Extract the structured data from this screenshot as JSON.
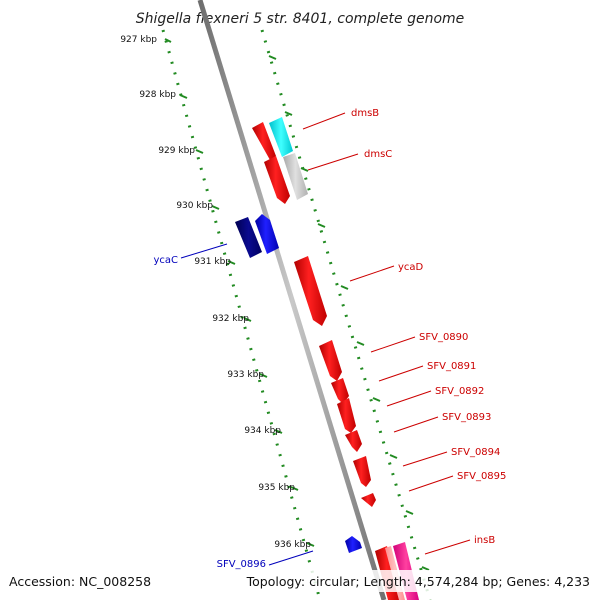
{
  "title": "Shigella flexneri 5 str. 8401, complete genome",
  "footer": {
    "accession": "Accession: NC_008258",
    "topology": "Topology: circular; Length: 4,574,284 bp; Genes: 4,233"
  },
  "ticks": [
    "927 kbp",
    "928 kbp",
    "929 kbp",
    "930 kbp",
    "931 kbp",
    "932 kbp",
    "933 kbp",
    "934 kbp",
    "935 kbp",
    "936 kbp"
  ],
  "genes_right": [
    {
      "label": "dmsB",
      "color": "#cc0000"
    },
    {
      "label": "dmsC",
      "color": "#cc0000"
    },
    {
      "label": "ycaD",
      "color": "#cc0000"
    },
    {
      "label": "SFV_0890",
      "color": "#cc0000"
    },
    {
      "label": "SFV_0891",
      "color": "#cc0000"
    },
    {
      "label": "SFV_0892",
      "color": "#cc0000"
    },
    {
      "label": "SFV_0893",
      "color": "#cc0000"
    },
    {
      "label": "SFV_0894",
      "color": "#cc0000"
    },
    {
      "label": "SFV_0895",
      "color": "#cc0000"
    },
    {
      "label": "insB",
      "color": "#cc0000"
    }
  ],
  "genes_left": [
    {
      "label": "ycaC",
      "color": "#0000bb"
    },
    {
      "label": "SFV_0896",
      "color": "#0000bb"
    }
  ],
  "colors": {
    "backbone": "#888888",
    "ruler": "#228b22",
    "forward_gene": "#ff0000",
    "reverse_gene": "#0000cc",
    "dark_reverse_gene": "#000080",
    "cyan_gene": "#00e5ee",
    "gray_gene": "#c0c0c0",
    "pink_gene": "#ff1493",
    "light_red_gene": "#ff7f7f"
  }
}
